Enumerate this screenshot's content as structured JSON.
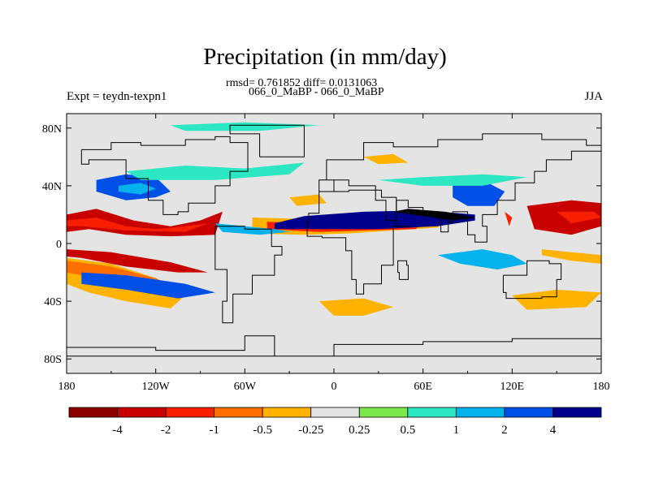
{
  "title": "Precipitation (in mm/day)",
  "stats_line": "rmsd= 0.761852 diff= 0.0131063",
  "comparison": "066_0_MaBP - 066_0_MaBP",
  "experiment": "Expt = teydn-texpn1",
  "season": "JJA",
  "colors": {
    "land_outline": "#000000",
    "neutral": "#e4e4e4"
  },
  "map_data": {
    "type": "filled_contour",
    "variable": "precipitation difference",
    "units": "mm/day",
    "lon_range": [
      -180,
      180
    ],
    "lat_range": [
      -90,
      90
    ],
    "lon_ticks": [
      {
        "value": -180,
        "label": "180"
      },
      {
        "value": -120,
        "label": "120W"
      },
      {
        "value": -60,
        "label": "60W"
      },
      {
        "value": 0,
        "label": "0"
      },
      {
        "value": 60,
        "label": "60E"
      },
      {
        "value": 120,
        "label": "120E"
      },
      {
        "value": 180,
        "label": "180"
      }
    ],
    "lat_ticks": [
      {
        "value": 80,
        "label": "80N"
      },
      {
        "value": 40,
        "label": "40N"
      },
      {
        "value": 0,
        "label": "0"
      },
      {
        "value": -40,
        "label": "40S"
      },
      {
        "value": -80,
        "label": "80S"
      }
    ],
    "levels": [
      "-4",
      "-2",
      "-1",
      "-0.5",
      "-0.25",
      "0.25",
      "0.5",
      "1",
      "2",
      "4"
    ],
    "colors": [
      "#8c0000",
      "#c90000",
      "#f81f00",
      "#ff6f00",
      "#ffb200",
      "#e4e4e4",
      "#7ce74c",
      "#2de6c2",
      "#06b2ec",
      "#0050e8",
      "#00008a"
    ],
    "regions": [
      {
        "cat": 1,
        "pts": [
          [
            -180,
            20
          ],
          [
            -160,
            24
          ],
          [
            -135,
            16
          ],
          [
            -110,
            12
          ],
          [
            -90,
            16
          ],
          [
            -75,
            22
          ],
          [
            -80,
            6
          ],
          [
            -110,
            5
          ],
          [
            -140,
            6
          ],
          [
            -165,
            10
          ],
          [
            -180,
            8
          ]
        ]
      },
      {
        "cat": 2,
        "pts": [
          [
            -180,
            16
          ],
          [
            -160,
            18
          ],
          [
            -140,
            12
          ],
          [
            -120,
            10
          ],
          [
            -100,
            12
          ],
          [
            -85,
            14
          ],
          [
            -100,
            8
          ],
          [
            -140,
            9
          ],
          [
            -170,
            12
          ],
          [
            -180,
            12
          ]
        ]
      },
      {
        "cat": 4,
        "pts": [
          [
            -55,
            18
          ],
          [
            -20,
            17
          ],
          [
            0,
            19
          ],
          [
            30,
            20
          ],
          [
            60,
            20
          ],
          [
            75,
            18
          ],
          [
            70,
            11
          ],
          [
            40,
            9
          ],
          [
            10,
            7
          ],
          [
            -20,
            6
          ],
          [
            -55,
            7
          ]
        ]
      },
      {
        "cat": 2,
        "pts": [
          [
            -45,
            15
          ],
          [
            -10,
            14
          ],
          [
            20,
            14
          ],
          [
            50,
            14
          ],
          [
            62,
            16
          ],
          [
            55,
            10
          ],
          [
            20,
            9
          ],
          [
            -10,
            8
          ],
          [
            -45,
            10
          ]
        ]
      },
      {
        "cat": 1,
        "pts": [
          [
            -180,
            -4
          ],
          [
            -150,
            -6
          ],
          [
            -110,
            -13
          ],
          [
            -85,
            -20
          ],
          [
            -105,
            -20
          ],
          [
            -140,
            -16
          ],
          [
            -170,
            -10
          ],
          [
            -180,
            -9
          ]
        ]
      },
      {
        "cat": 4,
        "pts": [
          [
            -180,
            -10
          ],
          [
            -150,
            -14
          ],
          [
            -120,
            -24
          ],
          [
            -100,
            -36
          ],
          [
            -110,
            -45
          ],
          [
            -140,
            -40
          ],
          [
            -165,
            -34
          ],
          [
            -180,
            -28
          ]
        ]
      },
      {
        "cat": 3,
        "pts": [
          [
            -180,
            -12
          ],
          [
            -150,
            -16
          ],
          [
            -120,
            -24
          ],
          [
            -108,
            -30
          ],
          [
            -120,
            -32
          ],
          [
            -150,
            -26
          ],
          [
            -180,
            -20
          ]
        ]
      },
      {
        "cat": 9,
        "pts": [
          [
            -160,
            44
          ],
          [
            -140,
            48
          ],
          [
            -120,
            46
          ],
          [
            -110,
            36
          ],
          [
            -120,
            32
          ],
          [
            -140,
            30
          ],
          [
            -160,
            36
          ]
        ]
      },
      {
        "cat": 8,
        "pts": [
          [
            -145,
            40
          ],
          [
            -130,
            42
          ],
          [
            -120,
            38
          ],
          [
            -130,
            34
          ],
          [
            -145,
            36
          ]
        ]
      },
      {
        "cat": 9,
        "pts": [
          [
            -170,
            -20
          ],
          [
            -140,
            -22
          ],
          [
            -100,
            -28
          ],
          [
            -80,
            -34
          ],
          [
            -105,
            -38
          ],
          [
            -140,
            -32
          ],
          [
            -170,
            -28
          ]
        ]
      },
      {
        "cat": 10,
        "pts": [
          [
            -40,
            10
          ],
          [
            30,
            10
          ],
          [
            70,
            12
          ],
          [
            95,
            16
          ],
          [
            95,
            20
          ],
          [
            60,
            23
          ],
          [
            20,
            22
          ],
          [
            -20,
            19
          ],
          [
            -40,
            14
          ]
        ]
      },
      {
        "cat": 11,
        "pts": [
          [
            40,
            22
          ],
          [
            80,
            16
          ],
          [
            95,
            18
          ],
          [
            75,
            22
          ],
          [
            50,
            24
          ]
        ]
      },
      {
        "cat": 9,
        "pts": [
          [
            80,
            40
          ],
          [
            100,
            44
          ],
          [
            115,
            36
          ],
          [
            108,
            26
          ],
          [
            90,
            26
          ],
          [
            80,
            32
          ]
        ]
      },
      {
        "cat": 8,
        "pts": [
          [
            -80,
            14
          ],
          [
            -60,
            12
          ],
          [
            -40,
            10
          ],
          [
            -30,
            8
          ],
          [
            -50,
            6
          ],
          [
            -75,
            8
          ]
        ]
      },
      {
        "cat": 8,
        "pts": [
          [
            70,
            -8
          ],
          [
            100,
            -4
          ],
          [
            120,
            -8
          ],
          [
            130,
            -14
          ],
          [
            110,
            -18
          ],
          [
            85,
            -14
          ]
        ]
      },
      {
        "cat": 7,
        "pts": [
          [
            -140,
            50
          ],
          [
            -100,
            54
          ],
          [
            -60,
            52
          ],
          [
            -20,
            56
          ],
          [
            -30,
            48
          ],
          [
            -80,
            44
          ],
          [
            -130,
            44
          ]
        ]
      },
      {
        "cat": 7,
        "pts": [
          [
            30,
            44
          ],
          [
            60,
            46
          ],
          [
            100,
            48
          ],
          [
            130,
            46
          ],
          [
            100,
            40
          ],
          [
            60,
            40
          ]
        ]
      },
      {
        "cat": 7,
        "pts": [
          [
            -110,
            82
          ],
          [
            -60,
            84
          ],
          [
            -10,
            82
          ],
          [
            -50,
            78
          ],
          [
            -100,
            78
          ]
        ]
      },
      {
        "cat": 1,
        "pts": [
          [
            130,
            26
          ],
          [
            160,
            30
          ],
          [
            180,
            28
          ],
          [
            180,
            12
          ],
          [
            160,
            6
          ],
          [
            135,
            10
          ]
        ]
      },
      {
        "cat": 2,
        "pts": [
          [
            150,
            22
          ],
          [
            175,
            22
          ],
          [
            180,
            18
          ],
          [
            160,
            14
          ]
        ]
      },
      {
        "cat": 2,
        "pts": [
          [
            115,
            22
          ],
          [
            120,
            18
          ],
          [
            118,
            12
          ]
        ]
      },
      {
        "cat": 4,
        "pts": [
          [
            140,
            -4
          ],
          [
            160,
            -6
          ],
          [
            180,
            -8
          ],
          [
            180,
            -14
          ],
          [
            160,
            -12
          ],
          [
            140,
            -8
          ]
        ]
      },
      {
        "cat": 4,
        "pts": [
          [
            120,
            -36
          ],
          [
            150,
            -32
          ],
          [
            180,
            -34
          ],
          [
            170,
            -44
          ],
          [
            130,
            -46
          ]
        ]
      },
      {
        "cat": 4,
        "pts": [
          [
            -10,
            -40
          ],
          [
            20,
            -38
          ],
          [
            40,
            -44
          ],
          [
            20,
            -50
          ],
          [
            0,
            -50
          ]
        ]
      },
      {
        "cat": 4,
        "pts": [
          [
            -30,
            32
          ],
          [
            -10,
            34
          ],
          [
            -5,
            28
          ],
          [
            -25,
            26
          ]
        ]
      },
      {
        "cat": 4,
        "pts": [
          [
            20,
            60
          ],
          [
            40,
            62
          ],
          [
            50,
            56
          ],
          [
            30,
            55
          ]
        ]
      }
    ],
    "outlines": [
      [
        [
          -170,
          65
        ],
        [
          -150,
          70
        ],
        [
          -130,
          68
        ],
        [
          -100,
          72
        ],
        [
          -80,
          74
        ],
        [
          -70,
          70
        ],
        [
          -58,
          50
        ],
        [
          -70,
          40
        ],
        [
          -80,
          28
        ],
        [
          -98,
          22
        ],
        [
          -105,
          20
        ],
        [
          -115,
          30
        ],
        [
          -125,
          45
        ],
        [
          -140,
          58
        ],
        [
          -165,
          55
        ],
        [
          -170,
          65
        ]
      ],
      [
        [
          -80,
          12
        ],
        [
          -60,
          10
        ],
        [
          -42,
          -2
        ],
        [
          -35,
          -8
        ],
        [
          -40,
          -22
        ],
        [
          -55,
          -35
        ],
        [
          -68,
          -55
        ],
        [
          -75,
          -40
        ],
        [
          -72,
          -18
        ],
        [
          -80,
          -4
        ],
        [
          -80,
          12
        ]
      ],
      [
        [
          -10,
          36
        ],
        [
          10,
          37
        ],
        [
          32,
          32
        ],
        [
          42,
          12
        ],
        [
          51,
          12
        ],
        [
          40,
          -5
        ],
        [
          40,
          -15
        ],
        [
          32,
          -28
        ],
        [
          20,
          -35
        ],
        [
          15,
          -25
        ],
        [
          12,
          -5
        ],
        [
          8,
          4
        ],
        [
          -8,
          5
        ],
        [
          -18,
          15
        ],
        [
          -17,
          21
        ],
        [
          -10,
          30
        ],
        [
          -10,
          36
        ]
      ],
      [
        [
          -10,
          36
        ],
        [
          0,
          44
        ],
        [
          -5,
          58
        ],
        [
          20,
          70
        ],
        [
          40,
          67
        ],
        [
          70,
          72
        ],
        [
          100,
          76
        ],
        [
          140,
          72
        ],
        [
          170,
          68
        ],
        [
          180,
          66
        ],
        [
          180,
          64
        ],
        [
          160,
          58
        ],
        [
          143,
          50
        ],
        [
          135,
          42
        ],
        [
          122,
          30
        ],
        [
          110,
          20
        ],
        [
          100,
          12
        ],
        [
          103,
          1
        ],
        [
          95,
          6
        ],
        [
          90,
          22
        ],
        [
          80,
          15
        ],
        [
          77,
          8
        ],
        [
          72,
          20
        ],
        [
          60,
          25
        ],
        [
          50,
          30
        ],
        [
          42,
          16
        ],
        [
          35,
          30
        ],
        [
          28,
          40
        ],
        [
          20,
          40
        ],
        [
          10,
          44
        ],
        [
          -10,
          36
        ]
      ],
      [
        [
          114,
          -22
        ],
        [
          130,
          -12
        ],
        [
          145,
          -14
        ],
        [
          153,
          -25
        ],
        [
          150,
          -37
        ],
        [
          140,
          -38
        ],
        [
          116,
          -34
        ],
        [
          114,
          -22
        ]
      ],
      [
        [
          -180,
          -72
        ],
        [
          -120,
          -74
        ],
        [
          -60,
          -64
        ],
        [
          -40,
          -78
        ],
        [
          0,
          -70
        ],
        [
          60,
          -68
        ],
        [
          120,
          -66
        ],
        [
          180,
          -70
        ],
        [
          180,
          -78
        ],
        [
          -180,
          -78
        ]
      ],
      [
        [
          -50,
          60
        ],
        [
          -20,
          70
        ],
        [
          -20,
          82
        ],
        [
          -60,
          82
        ],
        [
          -70,
          76
        ],
        [
          -50,
          60
        ]
      ],
      [
        [
          44,
          -25
        ],
        [
          50,
          -15
        ],
        [
          49,
          -12
        ],
        [
          43,
          -20
        ],
        [
          44,
          -25
        ]
      ]
    ]
  },
  "colorbar": {
    "labels": [
      "-4",
      "-2",
      "-1",
      "-0.5",
      "-0.25",
      "0.25",
      "0.5",
      "1",
      "2",
      "4"
    ]
  }
}
